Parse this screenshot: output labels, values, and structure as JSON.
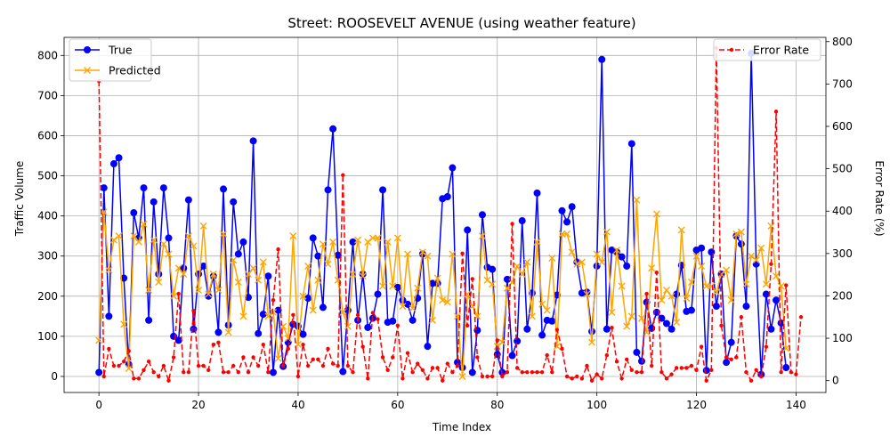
{
  "chart_data": {
    "type": "line",
    "title": "Street: ROOSEVELT AVENUE (using weather feature)",
    "xlabel": "Time Index",
    "ylabel": "Traffic Volume",
    "y2label": "Error Rate (%)",
    "xlim": [
      -7,
      146
    ],
    "ylim": [
      -40,
      845
    ],
    "y2lim": [
      -28,
      810
    ],
    "xticks": [
      0,
      20,
      40,
      60,
      80,
      100,
      120,
      140
    ],
    "yticks": [
      0,
      100,
      200,
      300,
      400,
      500,
      600,
      700,
      800
    ],
    "y2ticks": [
      0,
      100,
      200,
      300,
      400,
      500,
      600,
      700,
      800
    ],
    "grid": true,
    "legend_left_position": "upper-left",
    "legend_right_position": "upper-right",
    "series": [
      {
        "name": "True",
        "axis": "left",
        "color": "#0000ff",
        "marker": "circle",
        "values": [
          10,
          470,
          150,
          530,
          545,
          245,
          30,
          408,
          345,
          470,
          140,
          435,
          255,
          470,
          345,
          100,
          90,
          270,
          440,
          118,
          255,
          275,
          200,
          250,
          110,
          467,
          128,
          435,
          305,
          335,
          197,
          587,
          107,
          155,
          250,
          10,
          165,
          25,
          85,
          130,
          125,
          105,
          195,
          345,
          300,
          172,
          465,
          617,
          302,
          12,
          165,
          335,
          140,
          255,
          122,
          145,
          205,
          465,
          135,
          138,
          222,
          190,
          180,
          140,
          195,
          305,
          75,
          232,
          232,
          443,
          448,
          520,
          35,
          22,
          365,
          10,
          115,
          403,
          272,
          267,
          55,
          10,
          242,
          52,
          88,
          388,
          118,
          208,
          457,
          103,
          140,
          138,
          203,
          413,
          385,
          423,
          285,
          208,
          210,
          112,
          275,
          790,
          118,
          315,
          310,
          298,
          275,
          580,
          60,
          38,
          185,
          120,
          160,
          145,
          132,
          118,
          205,
          277,
          162,
          165,
          315,
          320,
          15,
          310,
          175,
          255,
          35,
          85,
          350,
          330,
          175,
          805,
          280,
          5,
          205,
          118,
          190,
          133,
          22
        ]
      },
      {
        "name": "Predicted",
        "axis": "left",
        "color": "#ffa500",
        "marker": "x",
        "values": [
          90,
          410,
          265,
          340,
          350,
          130,
          20,
          350,
          335,
          380,
          215,
          340,
          235,
          330,
          305,
          200,
          270,
          255,
          350,
          325,
          215,
          375,
          205,
          255,
          215,
          355,
          110,
          290,
          235,
          150,
          255,
          270,
          240,
          285,
          150,
          160,
          45,
          125,
          95,
          350,
          80,
          200,
          275,
          165,
          240,
          330,
          280,
          335,
          240,
          160,
          125,
          255,
          340,
          250,
          335,
          345,
          345,
          225,
          335,
          225,
          345,
          175,
          305,
          170,
          220,
          310,
          300,
          140,
          245,
          190,
          185,
          305,
          150,
          0,
          205,
          175,
          150,
          350,
          240,
          230,
          75,
          85,
          220,
          235,
          275,
          255,
          285,
          150,
          335,
          180,
          165,
          295,
          75,
          355,
          355,
          310,
          280,
          285,
          205,
          85,
          305,
          285,
          360,
          160,
          315,
          225,
          125,
          150,
          440,
          145,
          110,
          270,
          405,
          190,
          215,
          200,
          135,
          365,
          195,
          235,
          300,
          275,
          225,
          225,
          210,
          255,
          265,
          190,
          355,
          360,
          230,
          300,
          290,
          320,
          230,
          375,
          250,
          225,
          70
        ]
      },
      {
        "name": "Error Rate",
        "axis": "right",
        "color": "#ff0000",
        "marker": "small-dot",
        "values": [
          707,
          10,
          75,
          35,
          35,
          45,
          70,
          5,
          5,
          25,
          45,
          20,
          10,
          35,
          0,
          55,
          205,
          20,
          20,
          165,
          35,
          35,
          25,
          85,
          90,
          20,
          20,
          35,
          20,
          55,
          20,
          55,
          35,
          85,
          20,
          190,
          310,
          35,
          75,
          155,
          10,
          85,
          35,
          50,
          50,
          35,
          75,
          40,
          35,
          485,
          35,
          20,
          155,
          80,
          5,
          160,
          145,
          55,
          25,
          55,
          130,
          5,
          65,
          20,
          40,
          25,
          5,
          30,
          30,
          0,
          40,
          20,
          35,
          300,
          130,
          240,
          55,
          10,
          10,
          10,
          95,
          10,
          20,
          370,
          30,
          20,
          20,
          20,
          20,
          20,
          60,
          20,
          120,
          75,
          10,
          5,
          10,
          5,
          35,
          0,
          15,
          5,
          60,
          125,
          45,
          5,
          50,
          25,
          20,
          20,
          205,
          35,
          255,
          20,
          5,
          15,
          30,
          30,
          30,
          35,
          25,
          80,
          0,
          25,
          785,
          130,
          55,
          50,
          55,
          150,
          20,
          0,
          25,
          10,
          80,
          275,
          635,
          20,
          225,
          20,
          15,
          150
        ]
      }
    ]
  }
}
